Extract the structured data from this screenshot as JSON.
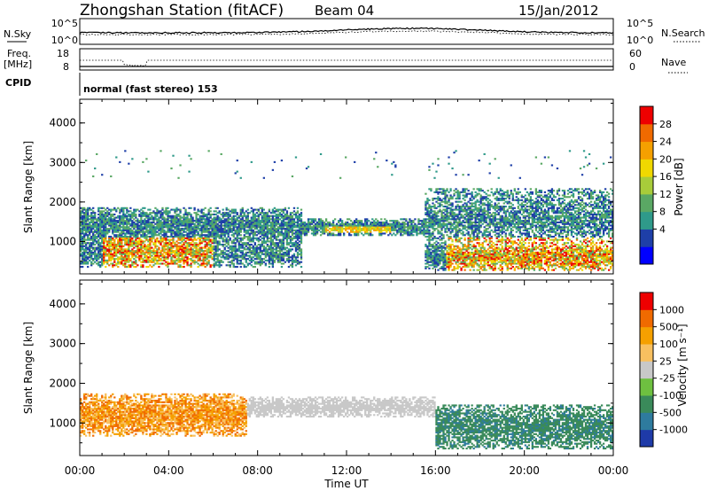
{
  "header": {
    "station": "Zhongshan Station (fitACF)",
    "beam": "Beam 04",
    "date": "15/Jan/2012",
    "cpid": "normal (fast stereo) 153"
  },
  "strips": {
    "nsky_label": "N.Sky",
    "nsearch_label": "N.Search",
    "nsky_ticks": [
      "10^5",
      "10^0"
    ],
    "nsearch_ticks": [
      "10^5",
      "10^0"
    ],
    "freq_label": "Freq.",
    "freq_unit": "[MHz]",
    "freq_ticks": [
      "18",
      "8"
    ],
    "nave_label": "Nave",
    "nave_ticks": [
      "60",
      "0"
    ],
    "cpid_label": "CPID"
  },
  "chart_data": [
    {
      "type": "heatmap",
      "name": "power",
      "ylabel": "Slant Range [km]",
      "ylim": [
        180,
        4600
      ],
      "yticks": [
        "4000",
        "3000",
        "2000",
        "1000"
      ],
      "xlabel": "Time UT",
      "xticks": [
        "00:00",
        "04:00",
        "08:00",
        "12:00",
        "16:00",
        "20:00",
        "00:00"
      ],
      "colorbar_label": "Power [dB]",
      "colorbar_ticks": [
        "28",
        "24",
        "20",
        "16",
        "12",
        "8",
        "4"
      ],
      "colorbar_colors": [
        "#0000ff",
        "#1e3fa8",
        "#2f9a8a",
        "#5aa864",
        "#a8cc3a",
        "#f0d800",
        "#f5a000",
        "#f06a00",
        "#ee0000"
      ]
    },
    {
      "type": "heatmap",
      "name": "velocity",
      "ylabel": "Slant Range [km]",
      "ylim": [
        180,
        4600
      ],
      "yticks": [
        "4000",
        "3000",
        "2000",
        "1000"
      ],
      "xlabel": "Time UT",
      "xticks": [
        "00:00",
        "04:00",
        "08:00",
        "12:00",
        "16:00",
        "20:00",
        "00:00"
      ],
      "colorbar_label": "Velocity [m s⁻¹]",
      "colorbar_ticks": [
        "1000",
        "500",
        "100",
        "25",
        "-25",
        "-100",
        "-500",
        "-1000"
      ],
      "colorbar_colors": [
        "#1e3aa8",
        "#2e7b9e",
        "#3a8a5a",
        "#6ec040",
        "#c8c8c8",
        "#f8c060",
        "#f5a000",
        "#f06a00",
        "#ee0000"
      ]
    }
  ],
  "colors": {
    "ground_scatter": "#c0c0c0",
    "axis": "#000000"
  }
}
